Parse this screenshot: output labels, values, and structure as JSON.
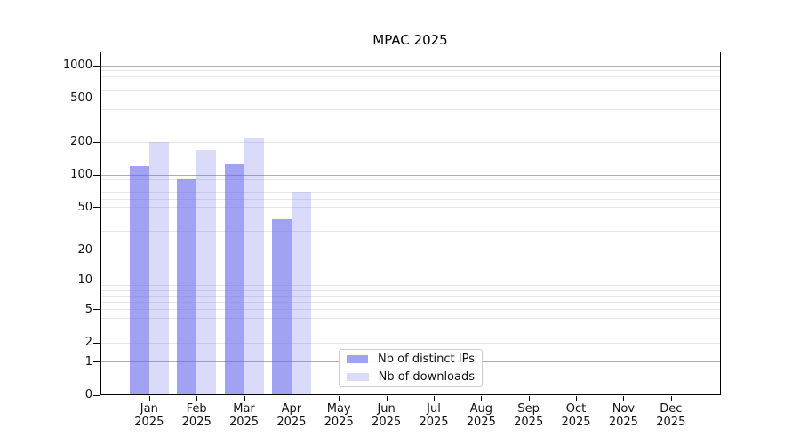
{
  "chart_data": {
    "type": "bar",
    "title": "MPAC 2025",
    "categories": [
      "Jan",
      "Feb",
      "Mar",
      "Apr",
      "May",
      "Jun",
      "Jul",
      "Aug",
      "Sep",
      "Oct",
      "Nov",
      "Dec"
    ],
    "category_year": "2025",
    "series": [
      {
        "name": "Nb of distinct IPs",
        "color": "rgba(100,100,235,0.6)",
        "values": [
          120,
          91,
          124,
          39,
          null,
          null,
          null,
          null,
          null,
          null,
          null,
          null
        ]
      },
      {
        "name": "Nb of downloads",
        "color": "rgba(100,100,235,0.24)",
        "values": [
          200,
          168,
          220,
          69,
          null,
          null,
          null,
          null,
          null,
          null,
          null,
          null
        ]
      }
    ],
    "y_axis": {
      "scale": "log10(1+value)",
      "ticks": [
        0,
        1,
        2,
        5,
        10,
        20,
        50,
        100,
        200,
        500,
        1000
      ],
      "major_gridlines": [
        1,
        10,
        100,
        1000
      ],
      "range": [
        0,
        1350
      ],
      "grid": true
    },
    "x_axis": {
      "tick_label_line2": "2025"
    },
    "legend": {
      "position": "bottom-center",
      "entries": [
        "Nb of distinct IPs",
        "Nb of downloads"
      ]
    },
    "colors": {
      "bar_distinct_ips": "rgba(100,100,235,0.6)",
      "bar_downloads": "rgba(100,100,235,0.24)",
      "grid_major": "#adadad",
      "grid_minor": "#e7e7e7",
      "axis": "#000000",
      "legend_border": "#cccccc",
      "text": "#111111"
    }
  }
}
